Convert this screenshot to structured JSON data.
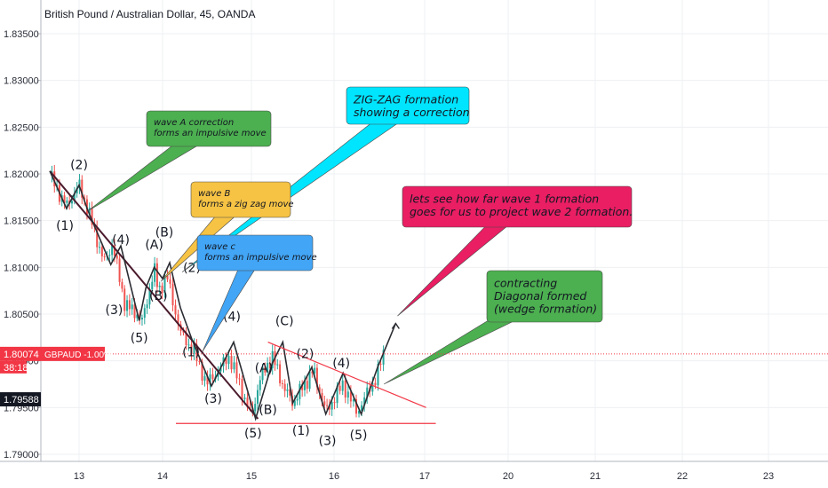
{
  "title": "British Pound / Australian Dollar, 45, OANDA",
  "chart_data": {
    "type": "candlestick",
    "symbol": "GBPAUD",
    "timeframe": "45",
    "source": "OANDA",
    "y_ticks": [
      "1.83500",
      "1.83000",
      "1.82500",
      "1.82000",
      "1.81500",
      "1.81000",
      "1.80500",
      "1.80000",
      "1.79500",
      "1.79000"
    ],
    "y_range": [
      1.7885,
      1.8395
    ],
    "x_ticks": [
      "13",
      "14",
      "15",
      "16",
      "17",
      "20",
      "21",
      "22",
      "23"
    ],
    "last_price": {
      "label": "1.80074",
      "symbol_label": "GBPAUD -1.00%",
      "countdown": "38:18",
      "value": 1.80074
    },
    "ref_price": {
      "label": "1.79588",
      "value": 1.79588
    },
    "price_path": [
      [
        12.65,
        1.8198
      ],
      [
        12.85,
        1.8165
      ],
      [
        13.0,
        1.8188
      ],
      [
        13.1,
        1.8163
      ],
      [
        13.3,
        1.8105
      ],
      [
        13.4,
        1.8125
      ],
      [
        13.55,
        1.806
      ],
      [
        13.7,
        1.805
      ],
      [
        13.75,
        1.804
      ],
      [
        13.9,
        1.8098
      ],
      [
        13.95,
        1.8075
      ],
      [
        14.05,
        1.809
      ],
      [
        14.2,
        1.803
      ],
      [
        14.35,
        1.801
      ],
      [
        14.5,
        1.7975
      ],
      [
        14.75,
        1.8005
      ],
      [
        15.0,
        1.794
      ],
      [
        15.1,
        1.798
      ],
      [
        15.25,
        1.8005
      ],
      [
        15.4,
        1.797
      ],
      [
        15.5,
        1.7955
      ],
      [
        15.75,
        1.799
      ],
      [
        15.9,
        1.7945
      ],
      [
        16.1,
        1.7975
      ],
      [
        16.25,
        1.7945
      ],
      [
        16.45,
        1.798
      ],
      [
        16.55,
        1.8007
      ]
    ],
    "wave_paths": [
      [
        [
          12.65,
          1.8203
        ],
        [
          15.08,
          1.7938
        ]
      ],
      [
        [
          12.65,
          1.8203
        ],
        [
          12.85,
          1.8163
        ],
        [
          13.0,
          1.8188
        ],
        [
          13.1,
          1.8162
        ],
        [
          13.38,
          1.8103
        ],
        [
          13.5,
          1.8123
        ],
        [
          13.72,
          1.8043
        ],
        [
          13.8,
          1.8078
        ],
        [
          13.9,
          1.81
        ],
        [
          14.0,
          1.8088
        ],
        [
          14.08,
          1.8105
        ],
        [
          14.2,
          1.8057
        ],
        [
          14.33,
          1.8023
        ],
        [
          14.55,
          1.7973
        ],
        [
          14.8,
          1.802
        ],
        [
          15.05,
          1.7938
        ],
        [
          15.25,
          1.7997
        ],
        [
          15.38,
          1.802
        ],
        [
          15.5,
          1.7955
        ],
        [
          15.73,
          1.7993
        ],
        [
          15.9,
          1.7943
        ],
        [
          16.1,
          1.7987
        ],
        [
          16.3,
          1.7943
        ],
        [
          16.48,
          1.7993
        ],
        [
          16.68,
          1.804
        ]
      ]
    ],
    "trend_lines": [
      {
        "from": [
          15.2,
          1.802
        ],
        "to": [
          17.05,
          1.795
        ]
      },
      {
        "from": [
          14.15,
          1.7933
        ],
        "to": [
          17.4,
          1.7933
        ]
      }
    ],
    "wave_labels": [
      {
        "text": "(2)",
        "x": 13.0,
        "y": 1.8205
      },
      {
        "text": "(1)",
        "x": 12.83,
        "y": 1.814
      },
      {
        "text": "(4)",
        "x": 13.5,
        "y": 1.8125
      },
      {
        "text": "(3)",
        "x": 13.42,
        "y": 1.805
      },
      {
        "text": "(5)",
        "x": 13.72,
        "y": 1.802
      },
      {
        "text": "(A)",
        "x": 13.9,
        "y": 1.812
      },
      {
        "text": "(B)",
        "x": 14.02,
        "y": 1.8133
      },
      {
        "text": "(B)",
        "x": 13.95,
        "y": 1.8065
      },
      {
        "text": "(2)",
        "x": 14.33,
        "y": 1.8095
      },
      {
        "text": "(1)",
        "x": 14.32,
        "y": 1.8005
      },
      {
        "text": "(4)",
        "x": 14.78,
        "y": 1.8043
      },
      {
        "text": "(3)",
        "x": 14.57,
        "y": 1.7955
      },
      {
        "text": "(A)",
        "x": 15.15,
        "y": 1.7988
      },
      {
        "text": "(C)",
        "x": 15.4,
        "y": 1.8038
      },
      {
        "text": "(2)",
        "x": 15.65,
        "y": 1.8003
      },
      {
        "text": "(4)",
        "x": 16.08,
        "y": 1.7993
      },
      {
        "text": "(B)",
        "x": 15.2,
        "y": 1.7943
      },
      {
        "text": "(5)",
        "x": 15.02,
        "y": 1.7918
      },
      {
        "text": "(1)",
        "x": 15.6,
        "y": 1.7921
      },
      {
        "text": "(3)",
        "x": 15.92,
        "y": 1.791
      },
      {
        "text": "(5)",
        "x": 16.27,
        "y": 1.7916
      }
    ]
  },
  "annotations": [
    {
      "id": "wave-a-note",
      "lines": [
        "wave A correction",
        "forms an impulsive move"
      ],
      "color": "#4caf50",
      "target": [
        13.1,
        1.816
      ]
    },
    {
      "id": "zigzag-note",
      "lines": [
        "ZIG-ZAG formation",
        "showing a correction"
      ],
      "color": "#00e5ff",
      "target": [
        14.22,
        1.8095
      ]
    },
    {
      "id": "wave-b-note",
      "lines": [
        "wave B",
        "forms a zig zag move"
      ],
      "color": "#f6c344",
      "target": [
        13.98,
        1.8085
      ]
    },
    {
      "id": "wave-c-note",
      "lines": [
        "wave c",
        "forms an impulsive move"
      ],
      "color": "#42a5f5",
      "target": [
        14.45,
        1.801
      ]
    },
    {
      "id": "wave1-note",
      "lines": [
        "lets see how far wave 1 formation",
        "goes for us to project wave 2 formation."
      ],
      "color": "#e91e63",
      "target": [
        16.7,
        1.8048
      ]
    },
    {
      "id": "diagonal-note",
      "lines": [
        "contracting",
        "Diagonal formed",
        "(wedge formation)"
      ],
      "color": "#4caf50",
      "target": [
        16.55,
        1.7975
      ]
    }
  ]
}
